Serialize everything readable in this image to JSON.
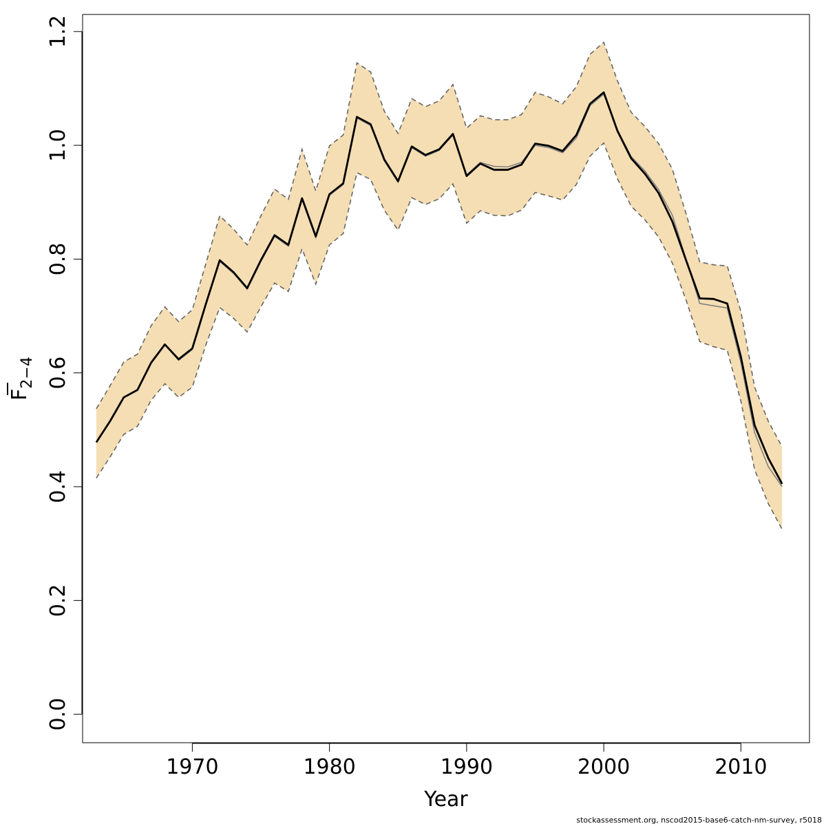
{
  "chart_data": {
    "type": "line",
    "xlabel": "Year",
    "ylabel": "F",
    "ylabel_sub": "2−4",
    "xlim": [
      1962,
      2015
    ],
    "ylim": [
      -0.05,
      1.23
    ],
    "x_ticks": [
      1970,
      1980,
      1990,
      2000,
      2010
    ],
    "y_ticks": [
      0.0,
      0.2,
      0.4,
      0.6,
      0.8,
      1.0,
      1.2
    ],
    "y_tick_labels": [
      "0.0",
      "0.2",
      "0.4",
      "0.6",
      "0.8",
      "1.0",
      "1.2"
    ],
    "band_color": "#f5deb3",
    "line_color": "#000000",
    "secondary_line_color": "#808080",
    "ci_color": "#666666",
    "grid": false,
    "x": [
      1963,
      1964,
      1965,
      1966,
      1967,
      1968,
      1969,
      1970,
      1971,
      1972,
      1973,
      1974,
      1975,
      1976,
      1977,
      1978,
      1979,
      1980,
      1981,
      1982,
      1983,
      1984,
      1985,
      1986,
      1987,
      1988,
      1989,
      1990,
      1991,
      1992,
      1993,
      1994,
      1995,
      1996,
      1997,
      1998,
      1999,
      2000,
      2001,
      2002,
      2003,
      2004,
      2005,
      2006,
      2007,
      2008,
      2009,
      2010,
      2011,
      2012,
      2013
    ],
    "series": [
      {
        "role": "estimate",
        "values": [
          0.478,
          0.515,
          0.557,
          0.57,
          0.618,
          0.65,
          0.624,
          0.643,
          0.722,
          0.798,
          0.777,
          0.749,
          0.798,
          0.842,
          0.825,
          0.907,
          0.84,
          0.914,
          0.933,
          1.05,
          1.037,
          0.975,
          0.937,
          0.998,
          0.983,
          0.993,
          1.02,
          0.946,
          0.968,
          0.957,
          0.957,
          0.966,
          1.003,
          0.999,
          0.99,
          1.018,
          1.073,
          1.093,
          1.025,
          0.977,
          0.95,
          0.916,
          0.866,
          0.798,
          0.731,
          0.73,
          0.722,
          0.628,
          0.508,
          0.45,
          0.405
        ]
      },
      {
        "role": "previous-estimate",
        "values": [
          0.478,
          0.515,
          0.557,
          0.57,
          0.618,
          0.65,
          0.622,
          0.641,
          0.72,
          0.796,
          0.775,
          0.747,
          0.796,
          0.84,
          0.823,
          0.905,
          0.838,
          0.912,
          0.931,
          1.048,
          1.035,
          0.973,
          0.935,
          0.996,
          0.981,
          0.991,
          1.018,
          0.948,
          0.97,
          0.963,
          0.962,
          0.97,
          1.0,
          0.996,
          0.987,
          1.013,
          1.07,
          1.09,
          1.027,
          0.98,
          0.955,
          0.922,
          0.877,
          0.8,
          0.722,
          0.718,
          0.714,
          0.618,
          0.495,
          0.435,
          0.4
        ]
      },
      {
        "role": "upper-ci",
        "values": [
          0.537,
          0.577,
          0.619,
          0.633,
          0.683,
          0.716,
          0.69,
          0.711,
          0.793,
          0.876,
          0.853,
          0.825,
          0.876,
          0.923,
          0.905,
          0.993,
          0.92,
          0.999,
          1.018,
          1.145,
          1.129,
          1.06,
          1.021,
          1.082,
          1.068,
          1.078,
          1.107,
          1.03,
          1.052,
          1.045,
          1.045,
          1.054,
          1.093,
          1.085,
          1.073,
          1.103,
          1.16,
          1.181,
          1.113,
          1.058,
          1.033,
          1.003,
          0.958,
          0.88,
          0.795,
          0.79,
          0.788,
          0.708,
          0.575,
          0.515,
          0.47
        ]
      },
      {
        "role": "lower-ci",
        "values": [
          0.415,
          0.452,
          0.492,
          0.506,
          0.552,
          0.581,
          0.557,
          0.575,
          0.65,
          0.715,
          0.696,
          0.672,
          0.716,
          0.758,
          0.743,
          0.818,
          0.756,
          0.825,
          0.845,
          0.952,
          0.94,
          0.886,
          0.851,
          0.908,
          0.896,
          0.906,
          0.932,
          0.863,
          0.885,
          0.877,
          0.876,
          0.886,
          0.917,
          0.911,
          0.904,
          0.931,
          0.981,
          1.004,
          0.941,
          0.893,
          0.869,
          0.839,
          0.793,
          0.728,
          0.655,
          0.646,
          0.64,
          0.55,
          0.43,
          0.37,
          0.325
        ]
      }
    ]
  },
  "footer": "stockassessment.org, nscod2015-base6-catch-nm-survey, r5018"
}
